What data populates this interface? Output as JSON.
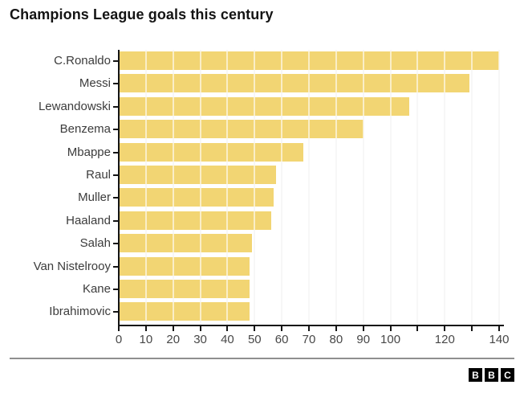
{
  "title": "Champions League goals this century",
  "chart_data": {
    "type": "bar",
    "orientation": "horizontal",
    "title": "Champions League goals this century",
    "xlabel": "",
    "ylabel": "",
    "categories": [
      "C.Ronaldo",
      "Messi",
      "Lewandowski",
      "Benzema",
      "Mbappe",
      "Raul",
      "Muller",
      "Haaland",
      "Salah",
      "Van Nistelrooy",
      "Kane",
      "Ibrahimovic"
    ],
    "values": [
      140,
      129,
      107,
      90,
      68,
      58,
      57,
      56,
      49,
      48,
      48,
      48
    ],
    "xlim": [
      0,
      140
    ],
    "x_ticks": [
      0,
      10,
      20,
      30,
      40,
      50,
      60,
      70,
      80,
      90,
      100,
      110,
      120,
      130,
      140
    ],
    "x_tick_labels": [
      0,
      10,
      20,
      30,
      40,
      50,
      60,
      70,
      80,
      90,
      100,
      120,
      140
    ],
    "grid": "vertical",
    "legend": "none",
    "bar_color": "#F2D573"
  },
  "colors": {
    "bar": "#F2D573",
    "axis": "#141414",
    "gridline": "#eaeaea",
    "label_text": "#3c3c3c",
    "tick_text": "#474747",
    "divider": "#8f8f8f",
    "background": "#ffffff"
  },
  "footer": {
    "logo_letters": [
      "B",
      "B",
      "C"
    ]
  }
}
